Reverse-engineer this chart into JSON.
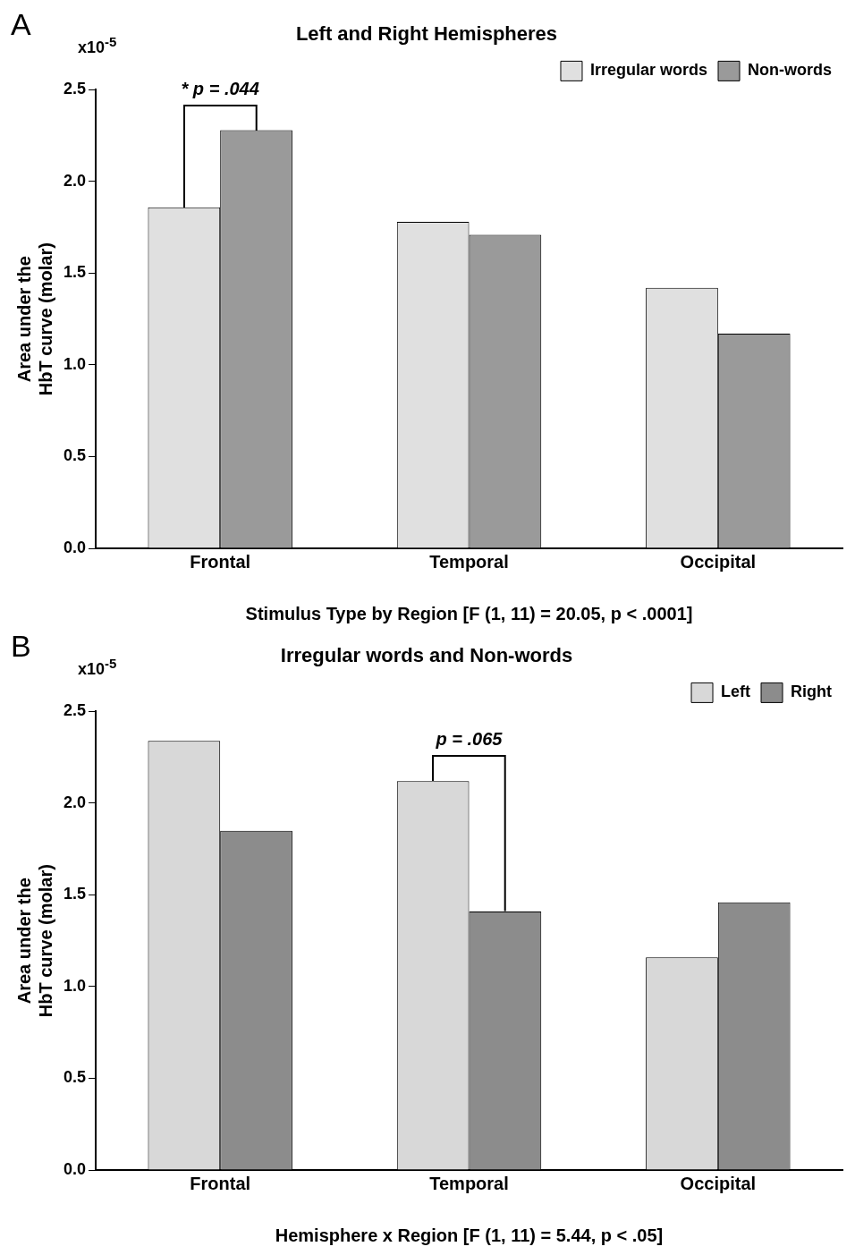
{
  "chart_data": [
    {
      "type": "bar",
      "title": "Left and Right Hemispheres",
      "xlabel": "Stimulus Type by Region [F (1, 11) = 20.05, p < .0001]",
      "ylabel": "Area under the\nHbT curve (molar)",
      "categories": [
        "Frontal",
        "Temporal",
        "Occipital"
      ],
      "series": [
        {
          "name": "Irregular words",
          "color": "#e0e0e0",
          "values": [
            1.86,
            1.78,
            1.42
          ]
        },
        {
          "name": "Non-words",
          "color": "#9a9a9a",
          "values": [
            2.28,
            1.71,
            1.17
          ]
        }
      ],
      "ylim": [
        0,
        2.5
      ],
      "yticks": [
        {
          "value": 0,
          "label": "0.0"
        },
        {
          "value": 0.5,
          "label": "0.5"
        },
        {
          "value": 1,
          "label": "1.0"
        },
        {
          "value": 1.5,
          "label": "1.5"
        },
        {
          "value": 2,
          "label": "2.0"
        },
        {
          "value": 2.5,
          "label": "2.5"
        }
      ],
      "grid": false,
      "legend": "top right",
      "annotations": [
        "A",
        "x10$^{-5}$",
        "* p = .044"
      ]
    },
    {
      "type": "bar",
      "title": "Irregular words and Non-words",
      "xlabel": "Hemisphere x Region [F (1, 11) = 5.44, p < .05]",
      "ylabel": "Area under the\nHbT curve (molar)",
      "categories": [
        "Frontal",
        "Temporal",
        "Occipital"
      ],
      "series": [
        {
          "name": "Left",
          "color": "#d8d8d8",
          "values": [
            2.34,
            2.12,
            1.16
          ]
        },
        {
          "name": "Right",
          "color": "#8c8c8c",
          "values": [
            1.85,
            1.41,
            1.46
          ]
        }
      ],
      "ylim": [
        0,
        2.5
      ],
      "yticks": [
        {
          "value": 0,
          "label": "0.0"
        },
        {
          "value": 0.5,
          "label": "0.5"
        },
        {
          "value": 1,
          "label": "1.0"
        },
        {
          "value": 1.5,
          "label": "1.5"
        },
        {
          "value": 2,
          "label": "2.0"
        },
        {
          "value": 2.5,
          "label": "2.5"
        }
      ],
      "grid": false,
      "legend": "top right",
      "annotations": [
        "B",
        "x10$^{-5}$",
        "p = .065"
      ]
    }
  ]
}
